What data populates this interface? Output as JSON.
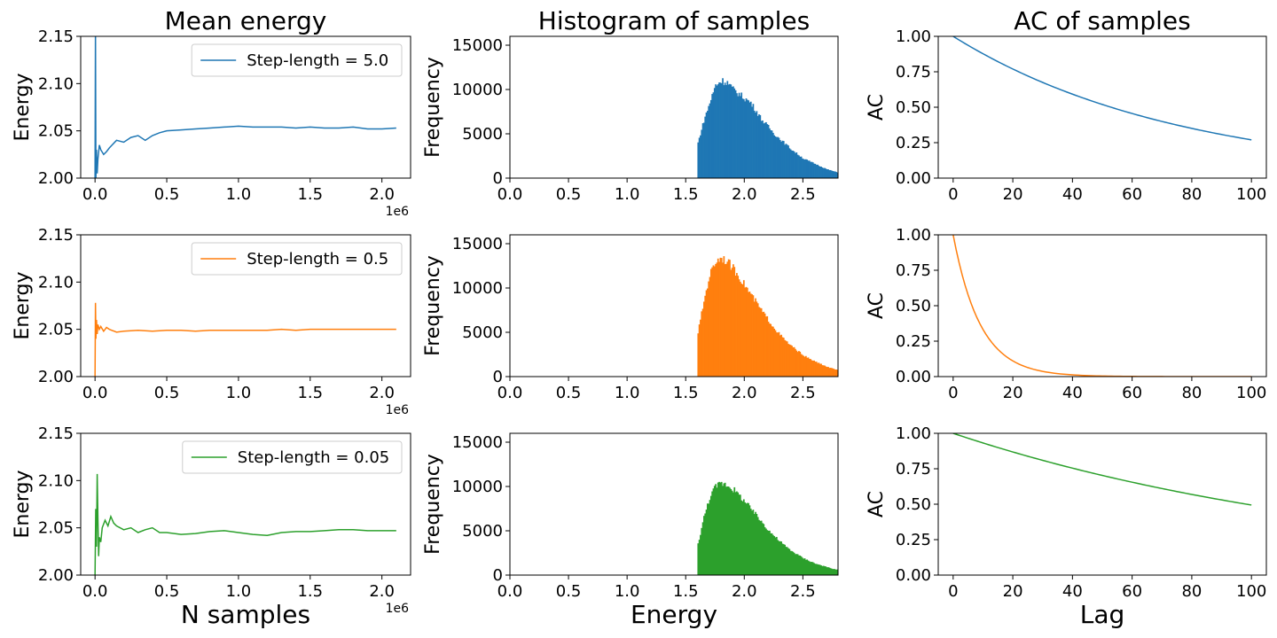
{
  "column_titles": [
    "Mean energy",
    "Histogram of samples",
    "AC of samples"
  ],
  "x_labels": [
    "N samples",
    "Energy",
    "Lag"
  ],
  "offset_text": "1e6",
  "colors": {
    "blue": "#1f77b4",
    "orange": "#ff7f0e",
    "green": "#2ca02c"
  },
  "chart_data": [
    {
      "type": "line",
      "title": "Mean energy",
      "xlabel": "",
      "ylabel": "Energy",
      "xlim": [
        -0.1,
        2.2
      ],
      "ylim": [
        2.0,
        2.15
      ],
      "xticks": [
        0.0,
        0.5,
        1.0,
        1.5,
        2.0
      ],
      "xticklabels": [
        "0.0",
        "0.5",
        "1.0",
        "1.5",
        "2.0"
      ],
      "yticks": [
        2.0,
        2.05,
        2.1,
        2.15
      ],
      "yticklabels": [
        "2.00",
        "2.05",
        "2.10",
        "2.15"
      ],
      "legend": {
        "label": "Step-length = 5.0",
        "placement": "upper right"
      },
      "series": [
        {
          "name": "Step-length = 5.0",
          "color": "#1f77b4",
          "x": [
            0,
            0.003,
            0.006,
            0.01,
            0.015,
            0.02,
            0.03,
            0.04,
            0.06,
            0.08,
            0.1,
            0.15,
            0.2,
            0.25,
            0.3,
            0.35,
            0.4,
            0.45,
            0.5,
            0.6,
            0.7,
            0.8,
            0.9,
            1.0,
            1.1,
            1.2,
            1.3,
            1.4,
            1.5,
            1.6,
            1.7,
            1.8,
            1.9,
            2.0,
            2.1
          ],
          "y": [
            2.0,
            2.16,
            2.0,
            2.03,
            2.005,
            2.02,
            2.035,
            2.03,
            2.025,
            2.028,
            2.032,
            2.04,
            2.038,
            2.043,
            2.045,
            2.04,
            2.045,
            2.048,
            2.05,
            2.051,
            2.052,
            2.053,
            2.054,
            2.055,
            2.054,
            2.054,
            2.054,
            2.053,
            2.054,
            2.053,
            2.053,
            2.054,
            2.052,
            2.052,
            2.053
          ]
        }
      ]
    },
    {
      "type": "bar",
      "title": "Histogram of samples",
      "xlabel": "",
      "ylabel": "Frequency",
      "xlim": [
        0.0,
        2.8
      ],
      "ylim": [
        0,
        16000
      ],
      "xticks": [
        0.0,
        0.5,
        1.0,
        1.5,
        2.0,
        2.5
      ],
      "xticklabels": [
        "0.0",
        "0.5",
        "1.0",
        "1.5",
        "2.0",
        "2.5"
      ],
      "yticks": [
        0,
        5000,
        10000,
        15000
      ],
      "yticklabels": [
        "0",
        "5000",
        "10000",
        "15000"
      ],
      "series": [
        {
          "color": "#1f77b4",
          "x": [
            1.6,
            1.65,
            1.7,
            1.75,
            1.8,
            1.85,
            1.9,
            1.95,
            2.0,
            2.05,
            2.1,
            2.15,
            2.2,
            2.25,
            2.3,
            2.35,
            2.4,
            2.45,
            2.5,
            2.55,
            2.6,
            2.65,
            2.7,
            2.75,
            2.8
          ],
          "values": [
            4000,
            6500,
            8500,
            10500,
            11000,
            10800,
            10000,
            9500,
            9000,
            8500,
            7500,
            6500,
            5800,
            5000,
            4400,
            3800,
            3200,
            2700,
            2200,
            1900,
            1600,
            1300,
            1000,
            800,
            600
          ]
        }
      ]
    },
    {
      "type": "line",
      "title": "AC of samples",
      "xlabel": "",
      "ylabel": "AC",
      "xlim": [
        -5,
        105
      ],
      "ylim": [
        0.0,
        1.0
      ],
      "xticks": [
        0,
        20,
        40,
        60,
        80,
        100
      ],
      "xticklabels": [
        "0",
        "20",
        "40",
        "60",
        "80",
        "100"
      ],
      "yticks": [
        0.0,
        0.25,
        0.5,
        0.75,
        1.0
      ],
      "yticklabels": [
        "0.00",
        "0.25",
        "0.50",
        "0.75",
        "1.00"
      ],
      "series": [
        {
          "color": "#1f77b4",
          "decay": 0.0131
        }
      ]
    },
    {
      "type": "line",
      "title": "",
      "xlabel": "",
      "ylabel": "Energy",
      "xlim": [
        -0.1,
        2.2
      ],
      "ylim": [
        2.0,
        2.15
      ],
      "xticks": [
        0.0,
        0.5,
        1.0,
        1.5,
        2.0
      ],
      "xticklabels": [
        "0.0",
        "0.5",
        "1.0",
        "1.5",
        "2.0"
      ],
      "yticks": [
        2.0,
        2.05,
        2.1,
        2.15
      ],
      "yticklabels": [
        "2.00",
        "2.05",
        "2.10",
        "2.15"
      ],
      "legend": {
        "label": "Step-length = 0.5",
        "placement": "upper right"
      },
      "series": [
        {
          "name": "Step-length = 0.5",
          "color": "#ff7f0e",
          "x": [
            0,
            0.003,
            0.006,
            0.01,
            0.015,
            0.02,
            0.03,
            0.04,
            0.06,
            0.08,
            0.1,
            0.15,
            0.2,
            0.3,
            0.4,
            0.5,
            0.6,
            0.7,
            0.8,
            0.9,
            1.0,
            1.1,
            1.2,
            1.3,
            1.4,
            1.5,
            1.6,
            1.7,
            1.8,
            1.9,
            2.0,
            2.1
          ],
          "y": [
            2.0,
            2.078,
            2.04,
            2.06,
            2.045,
            2.055,
            2.05,
            2.053,
            2.048,
            2.052,
            2.05,
            2.047,
            2.048,
            2.049,
            2.048,
            2.049,
            2.049,
            2.048,
            2.049,
            2.049,
            2.049,
            2.049,
            2.049,
            2.05,
            2.049,
            2.05,
            2.05,
            2.05,
            2.05,
            2.05,
            2.05,
            2.05
          ]
        }
      ]
    },
    {
      "type": "bar",
      "title": "",
      "xlabel": "",
      "ylabel": "Frequency",
      "xlim": [
        0.0,
        2.8
      ],
      "ylim": [
        0,
        16000
      ],
      "xticks": [
        0.0,
        0.5,
        1.0,
        1.5,
        2.0,
        2.5
      ],
      "xticklabels": [
        "0.0",
        "0.5",
        "1.0",
        "1.5",
        "2.0",
        "2.5"
      ],
      "yticks": [
        0,
        5000,
        10000,
        15000
      ],
      "yticklabels": [
        "0",
        "5000",
        "10000",
        "15000"
      ],
      "series": [
        {
          "color": "#ff7f0e",
          "x": [
            1.6,
            1.65,
            1.7,
            1.75,
            1.8,
            1.85,
            1.9,
            1.95,
            2.0,
            2.05,
            2.1,
            2.15,
            2.2,
            2.25,
            2.3,
            2.35,
            2.4,
            2.45,
            2.5,
            2.55,
            2.6,
            2.65,
            2.7,
            2.75,
            2.8
          ],
          "values": [
            5000,
            8500,
            11500,
            13000,
            13500,
            13000,
            12200,
            11300,
            10300,
            9300,
            8300,
            7300,
            6400,
            5500,
            4700,
            4000,
            3400,
            2900,
            2400,
            2000,
            1700,
            1400,
            1100,
            900,
            700
          ]
        }
      ]
    },
    {
      "type": "line",
      "title": "",
      "xlabel": "",
      "ylabel": "AC",
      "xlim": [
        -5,
        105
      ],
      "ylim": [
        0.0,
        1.0
      ],
      "xticks": [
        0,
        20,
        40,
        60,
        80,
        100
      ],
      "xticklabels": [
        "0",
        "20",
        "40",
        "60",
        "80",
        "100"
      ],
      "yticks": [
        0.0,
        0.25,
        0.5,
        0.75,
        1.0
      ],
      "yticklabels": [
        "0.00",
        "0.25",
        "0.50",
        "0.75",
        "1.00"
      ],
      "series": [
        {
          "color": "#ff7f0e",
          "decay": 0.11
        }
      ]
    },
    {
      "type": "line",
      "title": "",
      "xlabel": "N samples",
      "ylabel": "Energy",
      "xlim": [
        -0.1,
        2.2
      ],
      "ylim": [
        2.0,
        2.15
      ],
      "xticks": [
        0.0,
        0.5,
        1.0,
        1.5,
        2.0
      ],
      "xticklabels": [
        "0.0",
        "0.5",
        "1.0",
        "1.5",
        "2.0"
      ],
      "yticks": [
        2.0,
        2.05,
        2.1,
        2.15
      ],
      "yticklabels": [
        "2.00",
        "2.05",
        "2.10",
        "2.15"
      ],
      "legend": {
        "label": "Step-length = 0.05",
        "placement": "upper right"
      },
      "series": [
        {
          "name": "Step-length = 0.05",
          "color": "#2ca02c",
          "x": [
            0,
            0.005,
            0.01,
            0.015,
            0.02,
            0.025,
            0.03,
            0.04,
            0.05,
            0.07,
            0.09,
            0.11,
            0.13,
            0.15,
            0.2,
            0.25,
            0.3,
            0.35,
            0.4,
            0.45,
            0.5,
            0.6,
            0.7,
            0.8,
            0.9,
            1.0,
            1.1,
            1.2,
            1.3,
            1.4,
            1.5,
            1.6,
            1.7,
            1.8,
            1.9,
            2.0,
            2.1
          ],
          "y": [
            2.0,
            2.07,
            2.03,
            2.107,
            2.06,
            2.02,
            2.04,
            2.035,
            2.05,
            2.058,
            2.052,
            2.062,
            2.055,
            2.052,
            2.048,
            2.05,
            2.045,
            2.048,
            2.05,
            2.045,
            2.045,
            2.043,
            2.044,
            2.046,
            2.047,
            2.045,
            2.043,
            2.042,
            2.045,
            2.046,
            2.046,
            2.047,
            2.048,
            2.048,
            2.047,
            2.047,
            2.047
          ]
        }
      ]
    },
    {
      "type": "bar",
      "title": "",
      "xlabel": "Energy",
      "ylabel": "Frequency",
      "xlim": [
        0.0,
        2.8
      ],
      "ylim": [
        0,
        16000
      ],
      "xticks": [
        0.0,
        0.5,
        1.0,
        1.5,
        2.0,
        2.5
      ],
      "xticklabels": [
        "0.0",
        "0.5",
        "1.0",
        "1.5",
        "2.0",
        "2.5"
      ],
      "yticks": [
        0,
        5000,
        10000,
        15000
      ],
      "yticklabels": [
        "0",
        "5000",
        "10000",
        "15000"
      ],
      "series": [
        {
          "color": "#2ca02c",
          "x": [
            1.6,
            1.65,
            1.7,
            1.75,
            1.8,
            1.85,
            1.9,
            1.95,
            2.0,
            2.05,
            2.1,
            2.15,
            2.2,
            2.25,
            2.3,
            2.35,
            2.4,
            2.45,
            2.5,
            2.55,
            2.6,
            2.65,
            2.7,
            2.75,
            2.8
          ],
          "values": [
            3500,
            6500,
            8800,
            10000,
            10400,
            10200,
            9700,
            9000,
            8300,
            7500,
            6700,
            5900,
            5100,
            4400,
            3800,
            3200,
            2700,
            2300,
            1900,
            1600,
            1300,
            1100,
            900,
            700,
            600
          ]
        }
      ]
    },
    {
      "type": "line",
      "title": "",
      "xlabel": "Lag",
      "ylabel": "AC",
      "xlim": [
        -5,
        105
      ],
      "ylim": [
        0.0,
        1.0
      ],
      "xticks": [
        0,
        20,
        40,
        60,
        80,
        100
      ],
      "xticklabels": [
        "0",
        "20",
        "40",
        "60",
        "80",
        "100"
      ],
      "yticks": [
        0.0,
        0.25,
        0.5,
        0.75,
        1.0
      ],
      "yticklabels": [
        "0.00",
        "0.25",
        "0.50",
        "0.75",
        "1.00"
      ],
      "series": [
        {
          "color": "#2ca02c",
          "decay": 0.00705
        }
      ]
    }
  ]
}
